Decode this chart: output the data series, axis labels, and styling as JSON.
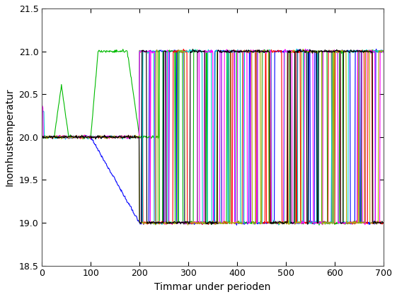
{
  "xlabel": "Timmar under perioden",
  "ylabel": "Inomhustemperatur",
  "xlim": [
    0,
    700
  ],
  "ylim": [
    18.5,
    21.5
  ],
  "xticks": [
    0,
    100,
    200,
    300,
    400,
    500,
    600,
    700
  ],
  "yticks": [
    18.5,
    19.0,
    19.5,
    20.0,
    20.5,
    21.0,
    21.5
  ],
  "temp_low": 19.0,
  "temp_high": 21.0,
  "n_steps": 700,
  "colors": [
    "#0000ff",
    "#00bb00",
    "#ff0000",
    "#00cccc",
    "#ff00ff",
    "#aaaa00",
    "#000000"
  ],
  "n_clusters": 7,
  "background_color": "#ffffff",
  "linewidth": 0.8
}
